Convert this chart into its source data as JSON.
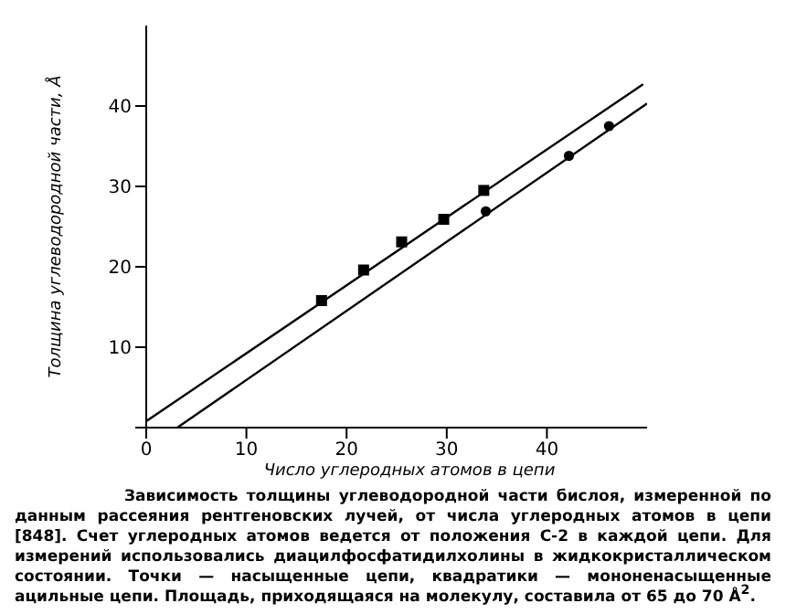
{
  "chart_data": {
    "type": "scatter",
    "xlabel": "Число углеродных атомов в цепи",
    "ylabel": "Толщина углеводородной части, Å",
    "xlim": [
      0,
      50
    ],
    "ylim": [
      0,
      50
    ],
    "xticks": [
      0,
      10,
      20,
      30,
      40
    ],
    "yticks": [
      {
        "value": 0,
        "label": null
      },
      10,
      20,
      30,
      40
    ],
    "grid": false,
    "legend": false,
    "series": [
      {
        "type": "scatter",
        "marker": "square",
        "color": "#000000",
        "x": [
          17.5,
          21.7,
          25.5,
          29.7,
          33.7
        ],
        "values": [
          15.8,
          19.6,
          23.1,
          25.9,
          29.5
        ]
      },
      {
        "type": "scatter",
        "marker": "circle",
        "color": "#000000",
        "x": [
          33.9,
          42.2,
          46.2
        ],
        "values": [
          26.9,
          33.8,
          37.5
        ]
      },
      {
        "type": "line",
        "color": "#000000",
        "x": [
          0,
          49.6
        ],
        "values": [
          0.8,
          42.7
        ]
      },
      {
        "type": "line",
        "color": "#000000",
        "x": [
          3.1,
          50
        ],
        "values": [
          0,
          40.3
        ]
      }
    ],
    "annotations": [
      "Зависимость толщины углеводородной части бислоя, измеренной по данным рассеяния рентгеновских лучей, от числа углеродных атомов в цепи [848]. Счет углеродных атомов ведется от положения С-2 в каждой цепи. Для измерений использовались диацилфосфатидилхолины в жидкокристаллическом состоянии. Точки — насыщенные цепи, квадратики — мононенасыщенные ацильные цепи. Площадь, приходящаяся на молекулу, составила от 65 до 70 Å$^{2}$."
    ]
  }
}
